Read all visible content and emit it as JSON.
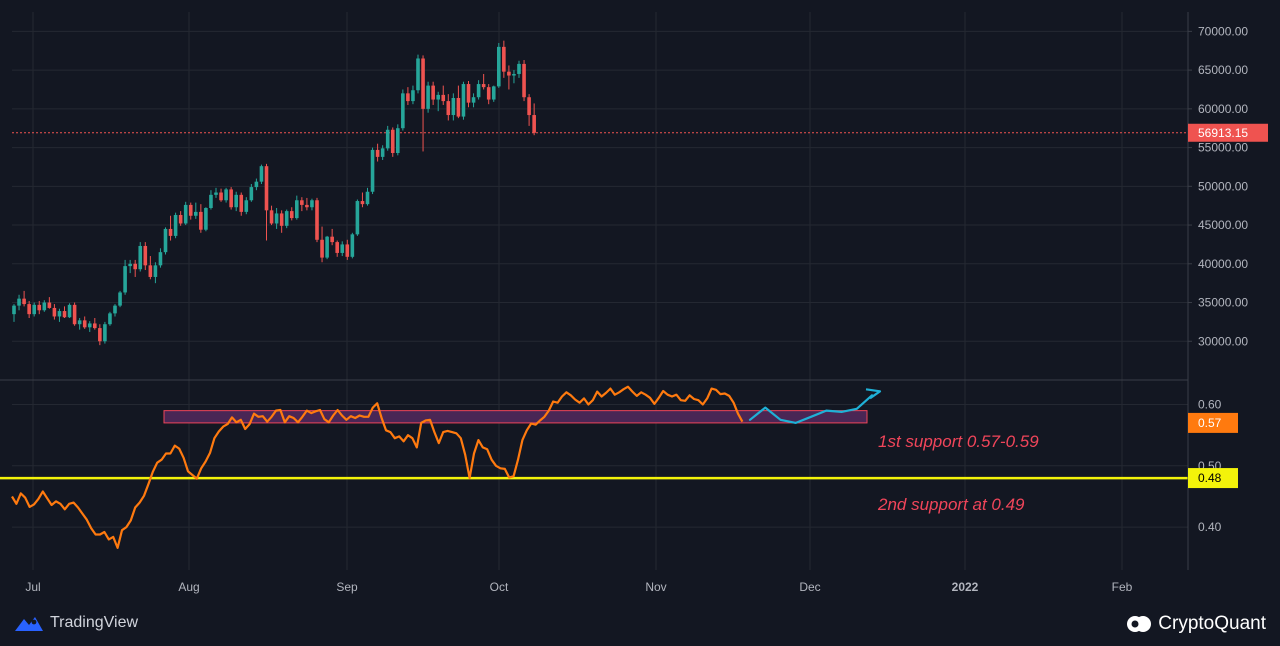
{
  "chart_data": [
    {
      "type": "candlestick",
      "title": "",
      "ylim": [
        25000,
        72500
      ],
      "y_ticks": [
        "70000.00",
        "65000.00",
        "60000.00",
        "55000.00",
        "50000.00",
        "45000.00",
        "40000.00",
        "35000.00",
        "30000.00"
      ],
      "last_price": "56913.15",
      "ohlc": [
        [
          33500,
          34800,
          32500,
          34600
        ],
        [
          34600,
          36000,
          34000,
          35500
        ],
        [
          35500,
          36500,
          34500,
          34800
        ],
        [
          34800,
          35200,
          33000,
          33500
        ],
        [
          33500,
          35000,
          33200,
          34700
        ],
        [
          34700,
          35200,
          33500,
          34000
        ],
        [
          34000,
          35300,
          33800,
          35000
        ],
        [
          35000,
          35700,
          34200,
          34300
        ],
        [
          34300,
          34800,
          32800,
          33200
        ],
        [
          33200,
          34200,
          32500,
          33900
        ],
        [
          33900,
          34500,
          33000,
          33100
        ],
        [
          33100,
          34900,
          33000,
          34700
        ],
        [
          34700,
          35000,
          32000,
          32200
        ],
        [
          32200,
          33000,
          31500,
          32700
        ],
        [
          32700,
          33200,
          31600,
          31800
        ],
        [
          31800,
          32600,
          31200,
          32300
        ],
        [
          32300,
          33000,
          31500,
          31700
        ],
        [
          31700,
          32200,
          29500,
          30000
        ],
        [
          30000,
          32500,
          29700,
          32200
        ],
        [
          32200,
          33800,
          32000,
          33600
        ],
        [
          33600,
          34800,
          33200,
          34600
        ],
        [
          34600,
          36500,
          34400,
          36300
        ],
        [
          36300,
          40500,
          36000,
          39700
        ],
        [
          39700,
          40500,
          38800,
          40000
        ],
        [
          40000,
          40500,
          38300,
          39300
        ],
        [
          39300,
          42800,
          39000,
          42300
        ],
        [
          42300,
          42800,
          39200,
          39800
        ],
        [
          39800,
          41000,
          38000,
          38300
        ],
        [
          38300,
          40200,
          37500,
          39800
        ],
        [
          39800,
          42000,
          39500,
          41500
        ],
        [
          41500,
          44700,
          41200,
          44500
        ],
        [
          44500,
          46200,
          43000,
          43600
        ],
        [
          43600,
          46600,
          43300,
          46300
        ],
        [
          46300,
          46800,
          44900,
          45200
        ],
        [
          45200,
          48000,
          45000,
          47600
        ],
        [
          47600,
          47900,
          45700,
          46200
        ],
        [
          46200,
          47900,
          45800,
          46700
        ],
        [
          46700,
          47700,
          44000,
          44400
        ],
        [
          44400,
          47300,
          44200,
          47200
        ],
        [
          47200,
          49500,
          47000,
          48900
        ],
        [
          48900,
          49800,
          48500,
          49200
        ],
        [
          49200,
          49700,
          48000,
          48200
        ],
        [
          48200,
          49800,
          47900,
          49600
        ],
        [
          49600,
          49900,
          47000,
          47300
        ],
        [
          47300,
          49300,
          46800,
          48900
        ],
        [
          48900,
          49200,
          46200,
          46700
        ],
        [
          46700,
          48600,
          46400,
          48200
        ],
        [
          48200,
          50300,
          48000,
          49900
        ],
        [
          49900,
          51000,
          49500,
          50600
        ],
        [
          50600,
          52800,
          50300,
          52600
        ],
        [
          52600,
          52900,
          43000,
          46900
        ],
        [
          46900,
          47500,
          45000,
          45200
        ],
        [
          45200,
          47200,
          44500,
          46500
        ],
        [
          46500,
          46900,
          44000,
          44900
        ],
        [
          44900,
          47000,
          44600,
          46800
        ],
        [
          46800,
          47300,
          45600,
          45900
        ],
        [
          45900,
          48800,
          45700,
          48200
        ],
        [
          48200,
          48600,
          46800,
          47600
        ],
        [
          47600,
          48500,
          46900,
          47300
        ],
        [
          47300,
          48400,
          46900,
          48200
        ],
        [
          48200,
          48500,
          42800,
          43100
        ],
        [
          43100,
          44800,
          40200,
          40800
        ],
        [
          40800,
          43600,
          40600,
          43500
        ],
        [
          43500,
          44500,
          42400,
          42800
        ],
        [
          42800,
          43000,
          40900,
          41400
        ],
        [
          41400,
          42900,
          41000,
          42500
        ],
        [
          42500,
          43100,
          40500,
          40900
        ],
        [
          40900,
          44000,
          40700,
          43800
        ],
        [
          43800,
          48300,
          43600,
          48100
        ],
        [
          48100,
          49200,
          47300,
          47700
        ],
        [
          47700,
          49800,
          47500,
          49300
        ],
        [
          49300,
          55000,
          49000,
          54700
        ],
        [
          54700,
          55500,
          53200,
          53800
        ],
        [
          53800,
          55300,
          53400,
          54900
        ],
        [
          54900,
          57800,
          54600,
          57300
        ],
        [
          57300,
          57600,
          53800,
          54300
        ],
        [
          54300,
          58000,
          54000,
          57500
        ],
        [
          57500,
          62500,
          57200,
          62000
        ],
        [
          62000,
          62800,
          60500,
          61000
        ],
        [
          61000,
          63000,
          60600,
          62400
        ],
        [
          62400,
          67000,
          62000,
          66500
        ],
        [
          66500,
          66900,
          54500,
          60000
        ],
        [
          60000,
          63500,
          59500,
          63000
        ],
        [
          63000,
          63500,
          60500,
          61200
        ],
        [
          61200,
          62200,
          59700,
          61800
        ],
        [
          61800,
          63000,
          60500,
          61000
        ],
        [
          61000,
          61900,
          58500,
          59200
        ],
        [
          59200,
          62000,
          58500,
          61400
        ],
        [
          61400,
          63000,
          58800,
          59000
        ],
        [
          59000,
          63500,
          58600,
          63200
        ],
        [
          63200,
          63600,
          60200,
          60800
        ],
        [
          60800,
          62000,
          60200,
          61500
        ],
        [
          61500,
          63700,
          61200,
          63200
        ],
        [
          63200,
          64500,
          62500,
          62800
        ],
        [
          62800,
          63200,
          60600,
          61200
        ],
        [
          61200,
          63000,
          60900,
          62900
        ],
        [
          62900,
          68500,
          62700,
          68000
        ],
        [
          68000,
          68800,
          64000,
          64800
        ],
        [
          64800,
          65600,
          62500,
          64300
        ],
        [
          64300,
          65000,
          63300,
          64500
        ],
        [
          64500,
          66200,
          64000,
          65800
        ],
        [
          65800,
          66300,
          61000,
          61500
        ],
        [
          61500,
          61900,
          57800,
          59200
        ],
        [
          59200,
          60700,
          56600,
          56913
        ]
      ]
    },
    {
      "type": "line",
      "series_name": "",
      "ylim": [
        0.33,
        0.64
      ],
      "y_ticks": [
        "0.60",
        "0.50",
        "0.40"
      ],
      "last_value": "0.57",
      "level_label": "0.48",
      "level_value": 0.48,
      "support_band": [
        0.57,
        0.59
      ],
      "projection": [
        0.575,
        0.595,
        0.575,
        0.57,
        0.58,
        0.59,
        0.588,
        0.593,
        0.615
      ],
      "values": [
        0.45,
        0.438,
        0.455,
        0.448,
        0.433,
        0.437,
        0.446,
        0.458,
        0.447,
        0.436,
        0.442,
        0.438,
        0.429,
        0.438,
        0.44,
        0.432,
        0.422,
        0.412,
        0.398,
        0.388,
        0.388,
        0.392,
        0.38,
        0.384,
        0.366,
        0.395,
        0.4,
        0.411,
        0.432,
        0.44,
        0.451,
        0.47,
        0.49,
        0.505,
        0.51,
        0.52,
        0.52,
        0.533,
        0.528,
        0.513,
        0.491,
        0.485,
        0.479,
        0.496,
        0.507,
        0.521,
        0.545,
        0.556,
        0.564,
        0.568,
        0.579,
        0.571,
        0.575,
        0.56,
        0.568,
        0.585,
        0.58,
        0.581,
        0.572,
        0.58,
        0.59,
        0.591,
        0.571,
        0.581,
        0.578,
        0.571,
        0.58,
        0.59,
        0.586,
        0.589,
        0.591,
        0.576,
        0.571,
        0.582,
        0.591,
        0.582,
        0.575,
        0.581,
        0.578,
        0.582,
        0.58,
        0.58,
        0.595,
        0.602,
        0.578,
        0.558,
        0.555,
        0.545,
        0.548,
        0.54,
        0.55,
        0.545,
        0.53,
        0.57,
        0.574,
        0.575,
        0.555,
        0.537,
        0.555,
        0.557,
        0.555,
        0.553,
        0.545,
        0.518,
        0.48,
        0.52,
        0.542,
        0.53,
        0.527,
        0.51,
        0.5,
        0.496,
        0.495,
        0.481,
        0.483,
        0.51,
        0.542,
        0.558,
        0.569,
        0.567,
        0.574,
        0.58,
        0.59,
        0.605,
        0.603,
        0.613,
        0.62,
        0.615,
        0.608,
        0.603,
        0.61,
        0.6,
        0.607,
        0.621,
        0.613,
        0.619,
        0.626,
        0.616,
        0.62,
        0.625,
        0.629,
        0.621,
        0.614,
        0.62,
        0.616,
        0.611,
        0.601,
        0.611,
        0.622,
        0.616,
        0.613,
        0.616,
        0.607,
        0.606,
        0.615,
        0.609,
        0.607,
        0.6,
        0.61,
        0.626,
        0.624,
        0.617,
        0.618,
        0.614,
        0.603,
        0.585,
        0.572
      ]
    }
  ],
  "x_axis": {
    "ticks": [
      "Jul",
      "Aug",
      "Sep",
      "Oct",
      "Nov",
      "Dec",
      "2022",
      "Feb"
    ]
  },
  "annotations": {
    "support1": "1st support 0.57-0.59",
    "support2": "2nd support at 0.49"
  },
  "colors": {
    "background": "#131722",
    "grid": "#242832",
    "up": "#26a69a",
    "down": "#ef5350",
    "oscillator": "#ff7a0f",
    "level": "#f3f30a",
    "projection": "#1fb1d7",
    "band_fill": "#4a2655",
    "band_stroke": "#f0455a",
    "label_red": "#f0455a"
  },
  "footer": {
    "left_brand": "TradingView",
    "right_brand": "CryptoQuant"
  }
}
